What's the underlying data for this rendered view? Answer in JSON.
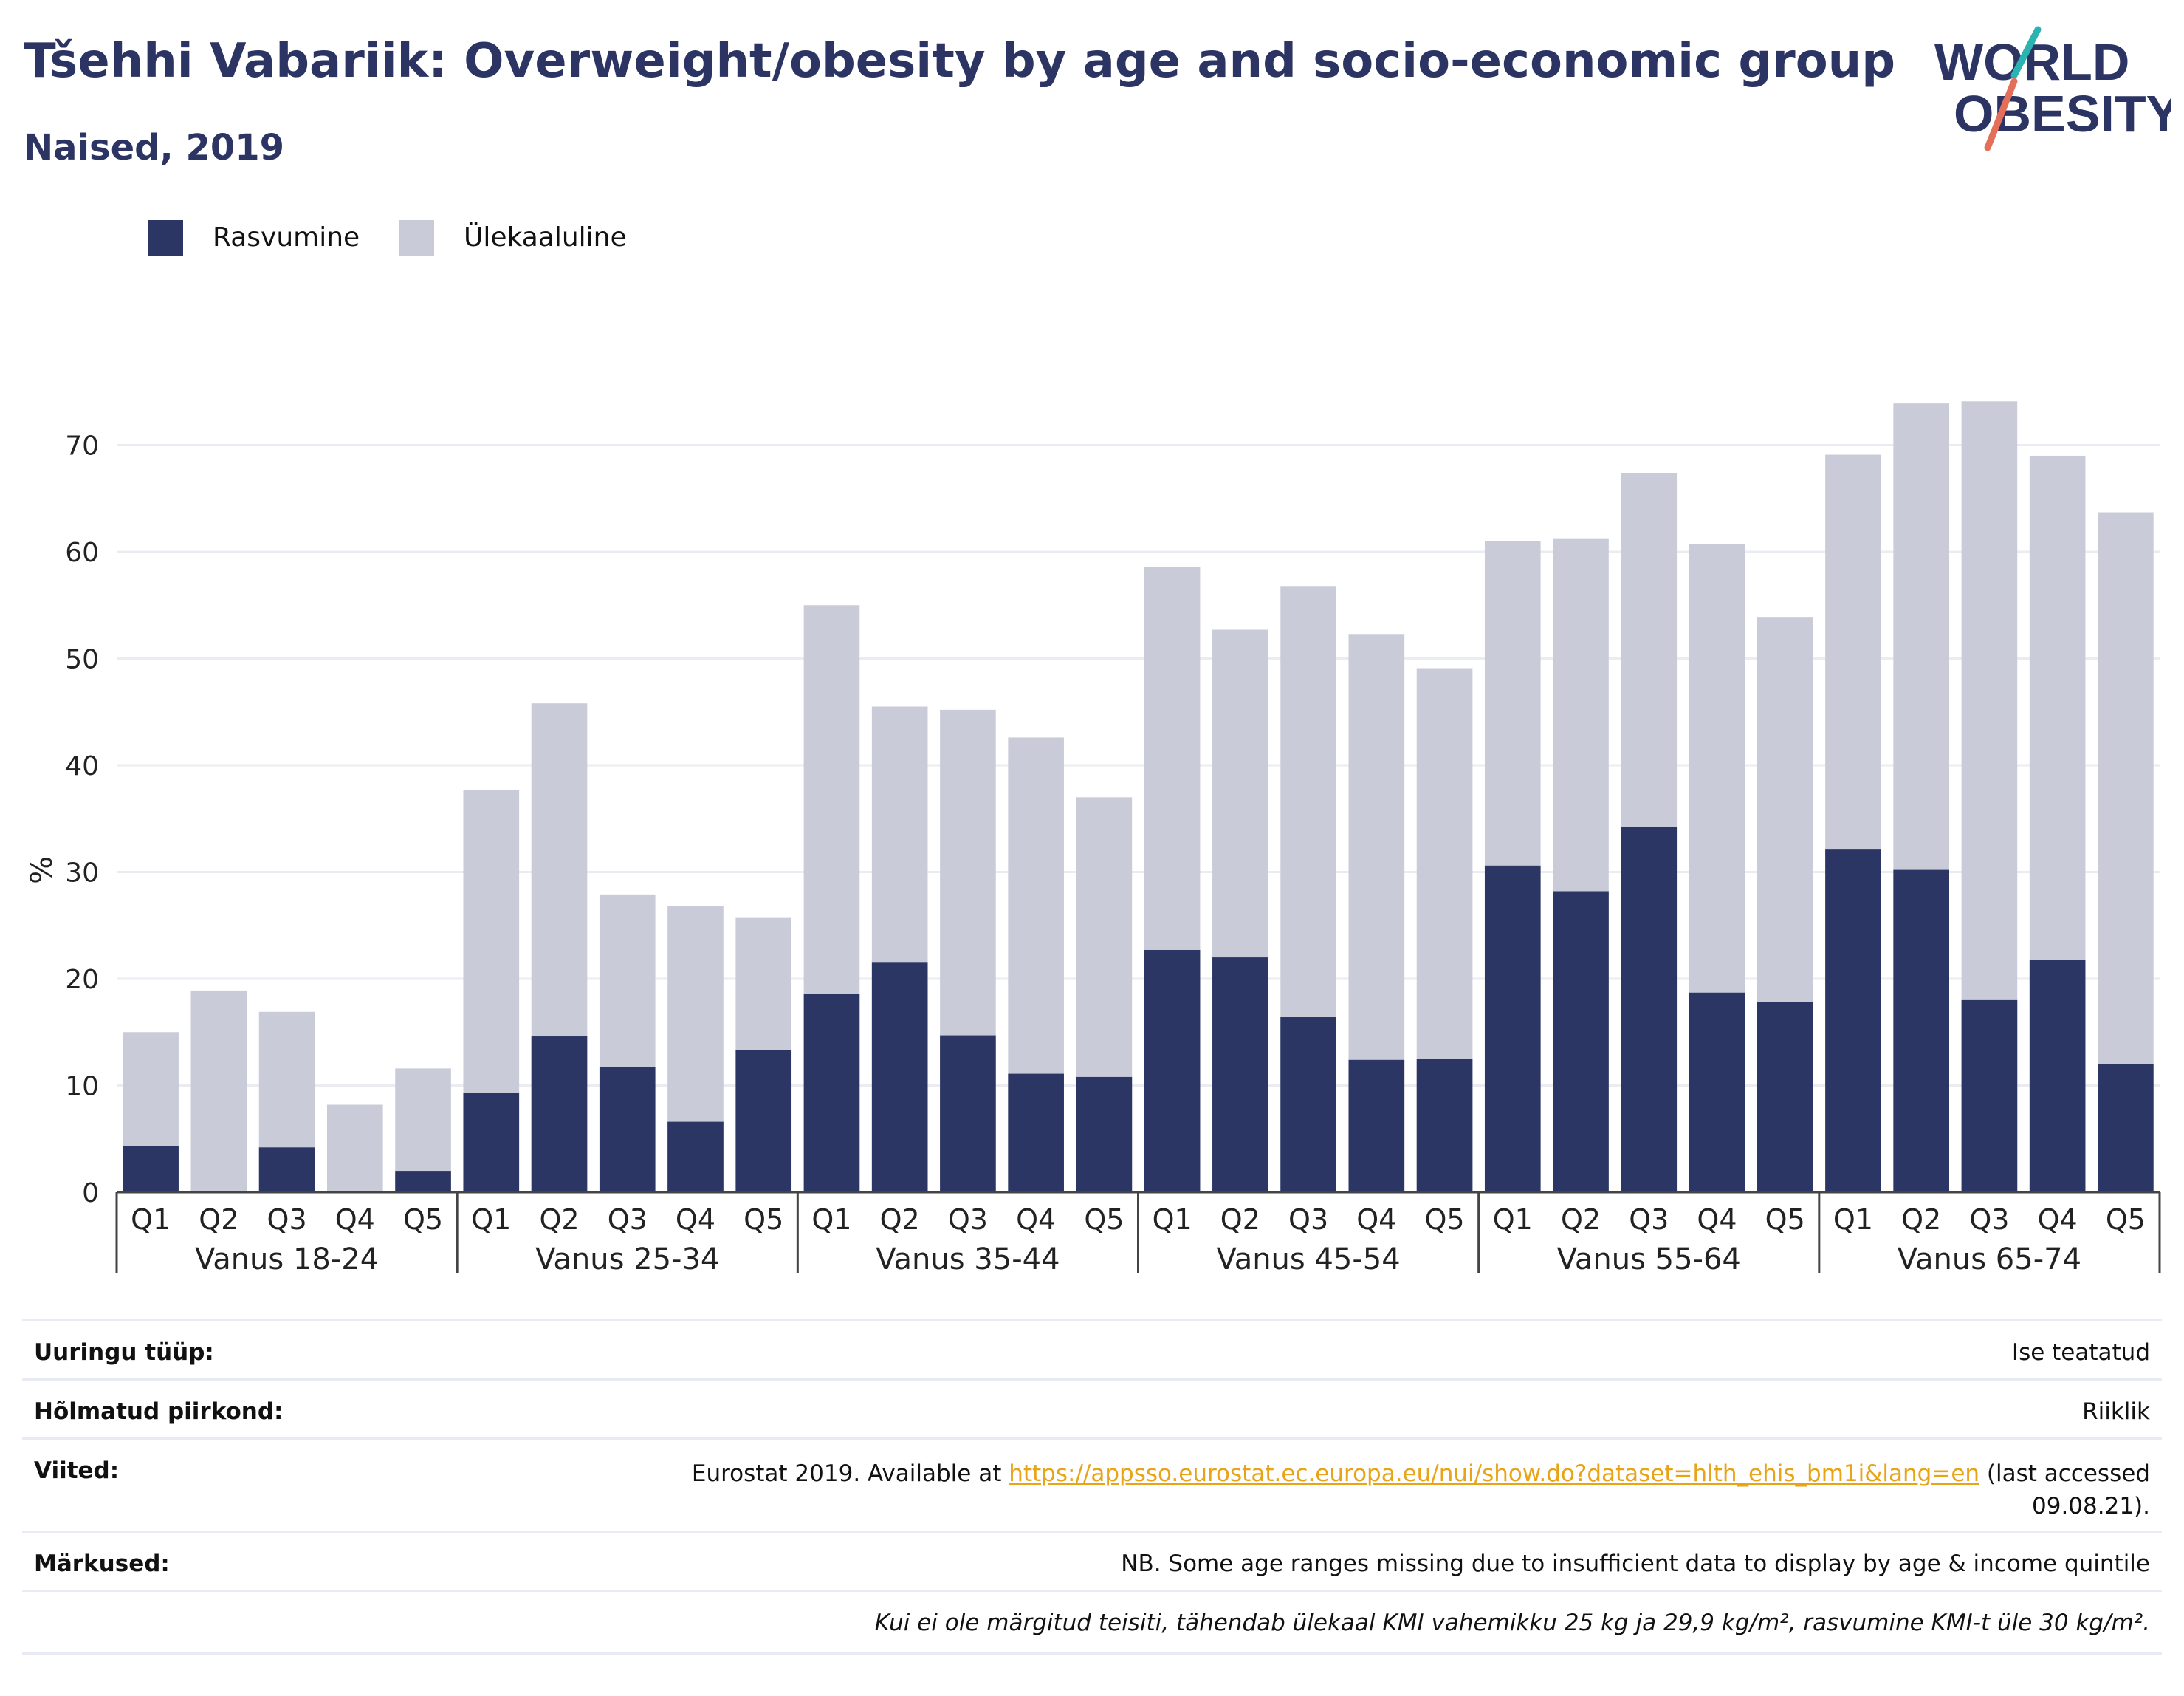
{
  "header": {
    "title": "Tšehhi Vabariik: Overweight/obesity by age and socio-economic group",
    "subtitle": "Naised, 2019"
  },
  "logo": {
    "line1": "WORLD",
    "line2": "OBESITY"
  },
  "legend": {
    "items": [
      {
        "label": "Rasvumine",
        "color": "#2b3664"
      },
      {
        "label": "Ülekaaluline",
        "color": "#c9ccd8"
      }
    ]
  },
  "chart_data": {
    "type": "bar",
    "stacked": false,
    "overlay": true,
    "ylabel": "%",
    "ylim": [
      0,
      77
    ],
    "yticks": [
      0,
      10,
      20,
      30,
      40,
      50,
      60,
      70
    ],
    "grid": true,
    "legend_position": "top-left",
    "categories": [
      "Q1",
      "Q2",
      "Q3",
      "Q4",
      "Q5"
    ],
    "groups": [
      "Vanus 18-24",
      "Vanus 25-34",
      "Vanus 35-44",
      "Vanus 45-54",
      "Vanus 55-64",
      "Vanus 65-74"
    ],
    "series": [
      {
        "name": "Ülekaaluline",
        "color": "#c9ccd8",
        "values": [
          [
            15.0,
            18.9,
            16.9,
            8.2,
            11.6
          ],
          [
            37.7,
            45.8,
            27.9,
            26.8,
            25.7
          ],
          [
            55.0,
            45.5,
            45.2,
            42.6,
            37.0
          ],
          [
            58.6,
            52.7,
            56.8,
            52.3,
            49.1
          ],
          [
            61.0,
            61.2,
            67.4,
            60.7,
            53.9
          ],
          [
            69.1,
            73.9,
            74.1,
            69.0,
            63.7
          ]
        ]
      },
      {
        "name": "Rasvumine",
        "color": "#2b3664",
        "values": [
          [
            4.3,
            0,
            4.2,
            0,
            2.0
          ],
          [
            9.3,
            14.6,
            11.7,
            6.6,
            13.3
          ],
          [
            18.6,
            21.5,
            14.7,
            11.1,
            10.8
          ],
          [
            22.7,
            22.0,
            16.4,
            12.4,
            12.5
          ],
          [
            30.6,
            28.2,
            34.2,
            18.7,
            17.8
          ],
          [
            32.1,
            30.2,
            18.0,
            21.8,
            12.0
          ]
        ]
      }
    ]
  },
  "meta": {
    "rows": [
      {
        "key": "Uuringu tüüp:",
        "value": "Ise teatatud"
      },
      {
        "key": "Hõlmatud piirkond:",
        "value": "Riiklik"
      },
      {
        "key": "Viited:",
        "value_prefix": "Eurostat 2019. Available at ",
        "link": "https://appsso.eurostat.ec.europa.eu/nui/show.do?dataset=hlth_ehis_bm1i&lang=en",
        "value_suffix": " (last accessed",
        "value_line2": "09.08.21)."
      },
      {
        "key": "Märkused:",
        "value": "NB. Some age ranges missing due to insufficient data to display by age & income quintile"
      },
      {
        "key": "",
        "value": "Kui ei ole märgitud teisiti, tähendab ülekaal KMI vahemikku 25 kg ja 29,9 kg/m², rasvumine KMI-t üle 30 kg/m²."
      }
    ]
  }
}
